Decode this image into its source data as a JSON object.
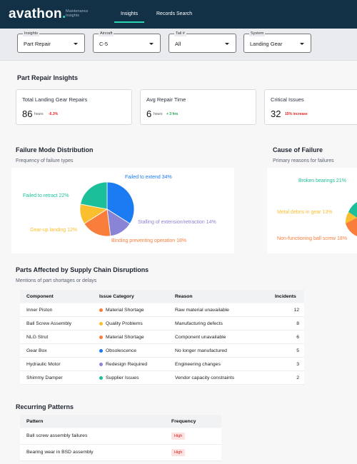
{
  "brand": {
    "name": "avathon",
    "dot": ".",
    "subtitle_line1": "Maintenance",
    "subtitle_line2": "Insights"
  },
  "nav": {
    "tabs": [
      {
        "label": "Insights",
        "active": true
      },
      {
        "label": "Records Search",
        "active": false
      }
    ]
  },
  "filters": [
    {
      "legend": "Insights",
      "value": "Part Repair"
    },
    {
      "legend": "Aircraft",
      "value": "C-5"
    },
    {
      "legend": "Tail #",
      "value": "All"
    },
    {
      "legend": "System",
      "value": "Landing Gear"
    }
  ],
  "insights": {
    "title": "Part Repair Insights",
    "kpis": [
      {
        "label": "Total Landing Gear Repairs",
        "value": "86",
        "unit": "hours",
        "delta": "-6.3%",
        "delta_color": "#e02424"
      },
      {
        "label": "Avg Repair Time",
        "value": "6",
        "unit": "hours",
        "delta": "+ 3 hrs",
        "delta_color": "#16a34a"
      },
      {
        "label": "Critical Issues",
        "value": "32",
        "unit": "",
        "delta": "15% increase",
        "delta_color": "#e02424"
      }
    ]
  },
  "failure_mode": {
    "title": "Failure Mode Distribution",
    "subtitle": "Frequency of failure types",
    "slices": [
      {
        "label": "Failed to extend 34%",
        "value": 34,
        "color": "#1a7bf2"
      },
      {
        "label": "Stalling of extension/retraction 14%",
        "value": 14,
        "color": "#8a84d6"
      },
      {
        "label": "Binding preventing operation 18%",
        "value": 18,
        "color": "#f97e3c"
      },
      {
        "label": "Gear-up landing 12%",
        "value": 12,
        "color": "#fbbe2e"
      },
      {
        "label": "Failed to retract 22%",
        "value": 22,
        "color": "#1bbf9a"
      }
    ]
  },
  "cause": {
    "title": "Cause of Failure",
    "subtitle": "Primary reasons for failures",
    "labels": [
      {
        "label": "Broken bearings 21%",
        "color": "#1bbf9a"
      },
      {
        "label": "Metal debris in gear 13%",
        "color": "#fbbe2e"
      },
      {
        "label": "Non-functioning ball screw 18%",
        "color": "#f97e3c"
      }
    ]
  },
  "supply": {
    "title": "Parts Affected by Supply Chain Disruptions",
    "subtitle": "Mentions of part shortages or delays",
    "headers": {
      "component": "Component",
      "category": "Issue Category",
      "reason": "Reason",
      "incidents": "Incidents"
    },
    "rows": [
      {
        "component": "Inner Piston",
        "category": "Material Shortage",
        "dot": "#f97e3c",
        "reason": "Raw material unavailable",
        "incidents": "12"
      },
      {
        "component": "Ball Screw Assembly",
        "category": "Quality Problems",
        "dot": "#fbbe2e",
        "reason": "Manufacturing defects",
        "incidents": "8"
      },
      {
        "component": "NLG Strut",
        "category": "Material Shortage",
        "dot": "#f97e3c",
        "reason": "Component unavailable",
        "incidents": "6"
      },
      {
        "component": "Gear Box",
        "category": "Obsolescence",
        "dot": "#1a7bf2",
        "reason": "No longer manufactured",
        "incidents": "5"
      },
      {
        "component": "Hydraulic Motor",
        "category": "Redesign Required",
        "dot": "#8a84d6",
        "reason": "Engineering changes",
        "incidents": "3"
      },
      {
        "component": "Shimmy Damper",
        "category": "Supplier Issues",
        "dot": "#1bbf9a",
        "reason": "Vendor capacity constraints",
        "incidents": "2"
      }
    ]
  },
  "patterns": {
    "title": "Recurring Patterns",
    "headers": {
      "pattern": "Pattern",
      "frequency": "Frequency"
    },
    "rows": [
      {
        "pattern": "Ball screw assembly failures",
        "frequency": "High"
      },
      {
        "pattern": "Bearing wear in BSD assembly",
        "frequency": "High"
      }
    ]
  }
}
